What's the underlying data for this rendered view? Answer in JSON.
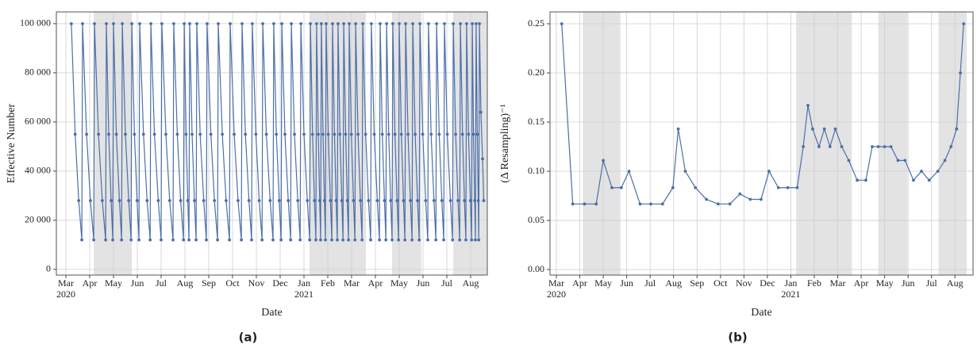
{
  "chart_data": [
    {
      "type": "line",
      "caption": "(a)",
      "xlabel": "Date",
      "ylabel": "Effective Number",
      "color": "#4c6fa8",
      "grid": true,
      "xlim": [
        -0.4,
        17.7
      ],
      "ylim": [
        -2300,
        104800
      ],
      "xticks": [
        {
          "value": 0,
          "label": "Mar"
        },
        {
          "value": 1,
          "label": "Apr"
        },
        {
          "value": 2,
          "label": "May"
        },
        {
          "value": 3,
          "label": "Jun"
        },
        {
          "value": 4,
          "label": "Jul"
        },
        {
          "value": 5,
          "label": "Aug"
        },
        {
          "value": 6,
          "label": "Sep"
        },
        {
          "value": 7,
          "label": "Oct"
        },
        {
          "value": 8,
          "label": "Nov"
        },
        {
          "value": 9,
          "label": "Dec"
        },
        {
          "value": 10,
          "label": "Jan"
        },
        {
          "value": 11,
          "label": "Feb"
        },
        {
          "value": 12,
          "label": "Mar"
        },
        {
          "value": 13,
          "label": "Apr"
        },
        {
          "value": 14,
          "label": "May"
        },
        {
          "value": 15,
          "label": "Jun"
        },
        {
          "value": 16,
          "label": "Jul"
        },
        {
          "value": 17,
          "label": "Aug"
        }
      ],
      "year_labels": [
        {
          "value": 0,
          "label": "2020"
        },
        {
          "value": 10,
          "label": "2021"
        }
      ],
      "yticks": [
        0,
        {
          "value": 20000,
          "label": "20 000"
        },
        {
          "value": 40000,
          "label": "40 000"
        },
        {
          "value": 60000,
          "label": "60 000"
        },
        {
          "value": 80000,
          "label": "80 000"
        },
        {
          "value": 100000,
          "label": "100 000"
        }
      ],
      "shaded_spans": [
        [
          1.17,
          2.77
        ],
        [
          10.23,
          12.6
        ],
        [
          13.7,
          14.93
        ],
        [
          16.27,
          17.7
        ]
      ],
      "x": [
        0.23,
        0.39,
        0.54,
        0.67,
        0.7,
        0.87,
        1.03,
        1.17,
        1.2,
        1.37,
        1.53,
        1.67,
        1.7,
        1.8,
        1.9,
        1.97,
        2.0,
        2.12,
        2.25,
        2.34,
        2.37,
        2.5,
        2.64,
        2.74,
        2.77,
        2.88,
        2.99,
        3.07,
        3.1,
        3.26,
        3.41,
        3.54,
        3.57,
        3.72,
        3.88,
        4.0,
        4.03,
        4.2,
        4.36,
        4.5,
        4.53,
        4.68,
        4.82,
        4.94,
        4.97,
        5.05,
        5.12,
        5.17,
        5.2,
        5.3,
        5.4,
        5.47,
        5.5,
        5.64,
        5.79,
        5.9,
        5.93,
        6.09,
        6.24,
        6.37,
        6.4,
        6.57,
        6.73,
        6.87,
        6.9,
        7.07,
        7.23,
        7.37,
        7.4,
        7.54,
        7.69,
        7.8,
        7.83,
        7.98,
        8.12,
        8.24,
        8.27,
        8.42,
        8.58,
        8.7,
        8.73,
        8.84,
        8.96,
        9.04,
        9.07,
        9.2,
        9.34,
        9.44,
        9.47,
        9.6,
        9.74,
        9.84,
        9.87,
        10.0,
        10.14,
        10.24,
        10.27,
        10.36,
        10.44,
        10.5,
        10.53,
        10.6,
        10.66,
        10.7,
        10.73,
        10.8,
        10.86,
        10.9,
        10.93,
        11.02,
        11.11,
        11.17,
        11.2,
        11.28,
        11.35,
        11.4,
        11.43,
        11.51,
        11.59,
        11.64,
        11.67,
        11.75,
        11.82,
        11.87,
        11.9,
        11.99,
        12.08,
        12.14,
        12.17,
        12.27,
        12.37,
        12.44,
        12.47,
        12.59,
        12.71,
        12.8,
        12.83,
        12.95,
        13.08,
        13.17,
        13.2,
        13.29,
        13.38,
        13.44,
        13.47,
        13.56,
        13.64,
        13.7,
        13.73,
        13.82,
        13.91,
        13.97,
        14.0,
        14.09,
        14.18,
        14.24,
        14.27,
        14.37,
        14.47,
        14.54,
        14.57,
        14.67,
        14.77,
        14.84,
        14.87,
        14.99,
        15.11,
        15.2,
        15.23,
        15.34,
        15.46,
        15.54,
        15.57,
        15.68,
        15.79,
        15.87,
        15.9,
        16.02,
        16.15,
        16.24,
        16.27,
        16.37,
        16.47,
        16.54,
        16.57,
        16.66,
        16.74,
        16.8,
        16.83,
        16.91,
        16.99,
        17.04,
        17.07,
        17.12,
        17.17,
        17.2,
        17.23,
        17.28,
        17.32,
        17.34,
        17.37,
        17.43,
        17.5,
        17.55
      ],
      "values": [
        100000,
        55000,
        28000,
        12000,
        100000,
        55000,
        28000,
        12000,
        100000,
        55000,
        28000,
        12000,
        100000,
        55000,
        28000,
        12000,
        100000,
        55000,
        28000,
        12000,
        100000,
        55000,
        28000,
        12000,
        100000,
        55000,
        28000,
        12000,
        100000,
        55000,
        28000,
        12000,
        100000,
        55000,
        28000,
        12000,
        100000,
        55000,
        28000,
        12000,
        100000,
        55000,
        28000,
        12000,
        100000,
        55000,
        28000,
        12000,
        100000,
        55000,
        28000,
        12000,
        100000,
        55000,
        28000,
        12000,
        100000,
        55000,
        28000,
        12000,
        100000,
        55000,
        28000,
        12000,
        100000,
        55000,
        28000,
        12000,
        100000,
        55000,
        28000,
        12000,
        100000,
        55000,
        28000,
        12000,
        100000,
        55000,
        28000,
        12000,
        100000,
        55000,
        28000,
        12000,
        100000,
        55000,
        28000,
        12000,
        100000,
        55000,
        28000,
        12000,
        100000,
        55000,
        28000,
        12000,
        100000,
        55000,
        28000,
        12000,
        100000,
        55000,
        28000,
        12000,
        100000,
        55000,
        28000,
        12000,
        100000,
        55000,
        28000,
        12000,
        100000,
        55000,
        28000,
        12000,
        100000,
        55000,
        28000,
        12000,
        100000,
        55000,
        28000,
        12000,
        100000,
        55000,
        28000,
        12000,
        100000,
        55000,
        28000,
        12000,
        100000,
        55000,
        28000,
        12000,
        100000,
        55000,
        28000,
        12000,
        100000,
        55000,
        28000,
        12000,
        100000,
        55000,
        28000,
        12000,
        100000,
        55000,
        28000,
        12000,
        100000,
        55000,
        28000,
        12000,
        100000,
        55000,
        28000,
        12000,
        100000,
        55000,
        28000,
        12000,
        100000,
        55000,
        28000,
        12000,
        100000,
        55000,
        28000,
        12000,
        100000,
        55000,
        28000,
        12000,
        100000,
        55000,
        28000,
        12000,
        100000,
        55000,
        28000,
        12000,
        100000,
        55000,
        28000,
        12000,
        100000,
        55000,
        28000,
        12000,
        100000,
        55000,
        28000,
        12000,
        100000,
        55000,
        28000,
        12000,
        100000,
        64000,
        45000,
        28000
      ]
    },
    {
      "type": "line",
      "caption": "(b)",
      "xlabel": "Date",
      "ylabel": "(Δ Resampling)⁻¹",
      "color": "#4c6fa8",
      "grid": true,
      "xlim": [
        -0.27,
        17.77
      ],
      "ylim": [
        -0.0056,
        0.2621
      ],
      "xticks": [
        {
          "value": 0,
          "label": "Mar"
        },
        {
          "value": 1,
          "label": "Apr"
        },
        {
          "value": 2,
          "label": "May"
        },
        {
          "value": 3,
          "label": "Jun"
        },
        {
          "value": 4,
          "label": "Jul"
        },
        {
          "value": 5,
          "label": "Aug"
        },
        {
          "value": 6,
          "label": "Sep"
        },
        {
          "value": 7,
          "label": "Oct"
        },
        {
          "value": 8,
          "label": "Nov"
        },
        {
          "value": 9,
          "label": "Dec"
        },
        {
          "value": 10,
          "label": "Jan"
        },
        {
          "value": 11,
          "label": "Feb"
        },
        {
          "value": 12,
          "label": "Mar"
        },
        {
          "value": 13,
          "label": "Apr"
        },
        {
          "value": 14,
          "label": "May"
        },
        {
          "value": 15,
          "label": "Jun"
        },
        {
          "value": 16,
          "label": "Jul"
        },
        {
          "value": 17,
          "label": "Aug"
        }
      ],
      "year_labels": [
        {
          "value": 0,
          "label": "2020"
        },
        {
          "value": 10,
          "label": "2021"
        }
      ],
      "yticks": [
        {
          "value": 0,
          "label": "0.00"
        },
        0.05,
        {
          "value": 0.1,
          "label": "0.10"
        },
        0.15,
        {
          "value": 0.2,
          "label": "0.20"
        },
        0.25
      ],
      "shaded_spans": [
        [
          1.13,
          2.73
        ],
        [
          10.23,
          12.6
        ],
        [
          13.73,
          14.97
        ],
        [
          16.3,
          17.5
        ]
      ],
      "x": [
        0.23,
        0.7,
        1.2,
        1.7,
        2.0,
        2.37,
        2.77,
        3.1,
        3.57,
        4.03,
        4.53,
        4.97,
        5.2,
        5.5,
        5.93,
        6.4,
        6.9,
        7.4,
        7.83,
        8.27,
        8.73,
        9.07,
        9.47,
        9.87,
        10.27,
        10.53,
        10.73,
        10.93,
        11.2,
        11.43,
        11.67,
        11.9,
        12.17,
        12.47,
        12.83,
        13.2,
        13.47,
        13.73,
        14.0,
        14.27,
        14.57,
        14.87,
        15.23,
        15.57,
        15.9,
        16.27,
        16.57,
        16.83,
        17.07,
        17.23,
        17.37
      ],
      "values": [
        0.25,
        0.0667,
        0.0667,
        0.0667,
        0.111,
        0.0833,
        0.0833,
        0.1,
        0.0667,
        0.0667,
        0.0667,
        0.0833,
        0.143,
        0.1,
        0.0833,
        0.0714,
        0.0667,
        0.0667,
        0.0769,
        0.0714,
        0.0714,
        0.1,
        0.0833,
        0.0833,
        0.0833,
        0.125,
        0.167,
        0.143,
        0.125,
        0.143,
        0.125,
        0.143,
        0.125,
        0.111,
        0.0909,
        0.0909,
        0.125,
        0.125,
        0.125,
        0.125,
        0.111,
        0.111,
        0.0909,
        0.1,
        0.0909,
        0.1,
        0.111,
        0.125,
        0.143,
        0.2,
        0.25
      ]
    }
  ]
}
